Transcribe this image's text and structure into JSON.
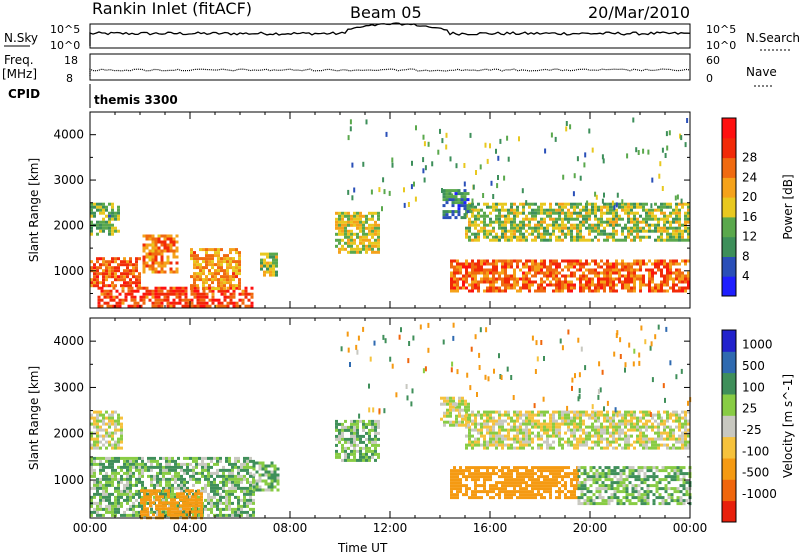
{
  "header": {
    "station": "Rankin Inlet (fitACF)",
    "beam": "Beam 05",
    "date": "20/Mar/2010"
  },
  "strip_labels": {
    "nsky": "N.Sky",
    "nsky_hi": "10^5",
    "nsky_lo": "10^0",
    "nsearch": "N.Search",
    "nsearch_hi": "10^5",
    "nsearch_lo": "10^0",
    "freq_top": "Freq.",
    "freq_unit": "[MHz]",
    "freq_hi": "18",
    "freq_lo": "8",
    "nave": "Nave",
    "nave_hi": "60",
    "nave_lo": "0",
    "cpid": "CPID",
    "cpid_value": "themis 3300"
  },
  "colors": {
    "power_scale": [
      "#1f1fff",
      "#2a4fb8",
      "#3d8f5a",
      "#5aa84c",
      "#e8c81f",
      "#f5a21a",
      "#f06a10",
      "#f22a08",
      "#ff1010"
    ],
    "velocity_scale": [
      "#e8200c",
      "#f0660c",
      "#f59a12",
      "#f6c23c",
      "#c8c8c0",
      "#88cc44",
      "#3f8f5a",
      "#2f6ab0",
      "#2222cc"
    ],
    "ground_scatter": "#c8c8c0"
  },
  "chart_data": [
    {
      "type": "heatmap",
      "panel": "power",
      "ylabel": "Slant Range [km]",
      "xlabel": "",
      "x_ticks": [
        "00:00",
        "04:00",
        "08:00",
        "12:00",
        "16:00",
        "20:00",
        "00:00"
      ],
      "x_range_hours": [
        0,
        24
      ],
      "y_ticks": [
        1000,
        2000,
        3000,
        4000
      ],
      "y_range_km": [
        180,
        4500
      ],
      "colorbar": {
        "label": "Power [dB]",
        "ticks": [
          4,
          8,
          12,
          16,
          20,
          24,
          28
        ]
      },
      "regions": [
        {
          "t0": 0.0,
          "t1": 2.0,
          "r0": 650,
          "r1": 1300,
          "value": 24
        },
        {
          "t0": 0.3,
          "t1": 6.5,
          "r0": 200,
          "r1": 650,
          "value": 26
        },
        {
          "t0": 2.1,
          "t1": 3.5,
          "r0": 1000,
          "r1": 1800,
          "value": 22
        },
        {
          "t0": 4.0,
          "t1": 6.0,
          "r0": 600,
          "r1": 1500,
          "value": 20
        },
        {
          "t0": 0.0,
          "t1": 1.2,
          "r0": 1800,
          "r1": 2500,
          "value": 12
        },
        {
          "t0": 6.8,
          "t1": 7.5,
          "r0": 900,
          "r1": 1400,
          "value": 14
        },
        {
          "t0": 9.8,
          "t1": 11.5,
          "r0": 1400,
          "r1": 2300,
          "value": 16
        },
        {
          "t0": 14.4,
          "t1": 24.0,
          "r0": 550,
          "r1": 1250,
          "value": 24
        },
        {
          "t0": 15.0,
          "t1": 24.0,
          "r0": 1700,
          "r1": 2500,
          "value": 14
        },
        {
          "t0": 14.1,
          "t1": 15.2,
          "r0": 2200,
          "r1": 2800,
          "value": 8
        }
      ]
    },
    {
      "type": "heatmap",
      "panel": "velocity",
      "ylabel": "Slant Range [km]",
      "xlabel": "Time UT",
      "x_ticks": [
        "00:00",
        "04:00",
        "08:00",
        "12:00",
        "16:00",
        "20:00",
        "00:00"
      ],
      "x_range_hours": [
        0,
        24
      ],
      "y_ticks": [
        1000,
        2000,
        3000,
        4000
      ],
      "y_range_km": [
        180,
        4500
      ],
      "colorbar": {
        "label": "Velocity [m s^-1]",
        "ticks": [
          1000,
          500,
          100,
          25,
          -25,
          -100,
          -500,
          -1000
        ]
      },
      "regions": [
        {
          "t0": 0.0,
          "t1": 1.3,
          "r0": 1700,
          "r1": 2500,
          "value": 0
        },
        {
          "t0": 0.0,
          "t1": 6.5,
          "r0": 250,
          "r1": 1500,
          "value": 80
        },
        {
          "t0": 2.0,
          "t1": 4.5,
          "r0": 200,
          "r1": 800,
          "value": -300
        },
        {
          "t0": 6.5,
          "t1": 7.5,
          "r0": 800,
          "r1": 1400,
          "value": 80
        },
        {
          "t0": 9.8,
          "t1": 11.5,
          "r0": 1400,
          "r1": 2300,
          "value": 80
        },
        {
          "t0": 14.4,
          "t1": 19.5,
          "r0": 600,
          "r1": 1300,
          "value": -300
        },
        {
          "t0": 19.5,
          "t1": 24.0,
          "r0": 500,
          "r1": 1300,
          "value": 80
        },
        {
          "t0": 15.0,
          "t1": 24.0,
          "r0": 1700,
          "r1": 2500,
          "value": 0
        },
        {
          "t0": 14.0,
          "t1": 15.2,
          "r0": 2200,
          "r1": 2800,
          "value": 0
        }
      ]
    }
  ]
}
